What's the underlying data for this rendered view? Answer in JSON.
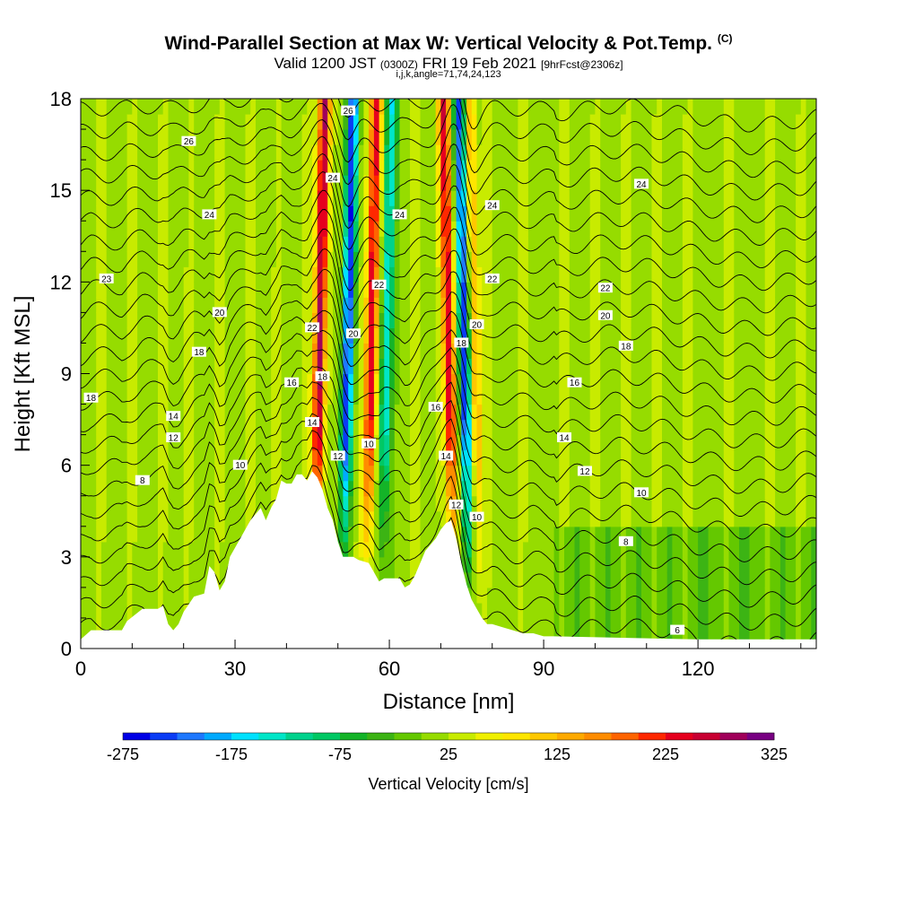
{
  "header": {
    "title": "Wind-Parallel Section at Max W: Vertical Velocity & Pot.Temp.",
    "title_mark": "(C)",
    "valid_prefix": "Valid 1200 JST",
    "valid_utc": "(0300Z)",
    "valid_date": "FRI 19 Feb 2021",
    "forecast_info": "[9hrFcst@2306z]",
    "index_line": "i,j,k,angle=71,74,24,123"
  },
  "chart_data": {
    "type": "heatmap",
    "xlabel": "Distance [nm]",
    "ylabel": "Height [Kft MSL]",
    "x_ticks": [
      0,
      30,
      60,
      90,
      120
    ],
    "y_ticks": [
      0,
      3,
      6,
      9,
      12,
      15,
      18
    ],
    "xlim": [
      0,
      143
    ],
    "ylim": [
      0,
      18
    ],
    "colorbar": {
      "label": "Vertical Velocity [cm/s]",
      "tick_labels": [
        "-275",
        "-175",
        "-75",
        "25",
        "125",
        "225",
        "325"
      ],
      "levels": [
        -275,
        -250,
        -225,
        -200,
        -175,
        -150,
        -125,
        -100,
        -75,
        -50,
        -25,
        0,
        25,
        50,
        75,
        100,
        125,
        150,
        175,
        200,
        225,
        250,
        275,
        300,
        325
      ],
      "colors": [
        "#0000e6",
        "#0a3cf5",
        "#1e78ff",
        "#00aaff",
        "#00e1ff",
        "#00e6c8",
        "#00d28c",
        "#00c864",
        "#14b428",
        "#3cb414",
        "#64c800",
        "#96dc00",
        "#c8eb00",
        "#f0f000",
        "#ffe600",
        "#ffc800",
        "#ffaa00",
        "#ff8c00",
        "#ff6400",
        "#ff2800",
        "#e6001e",
        "#c80032",
        "#a0005a",
        "#780082"
      ]
    },
    "terrain_profile": [
      [
        0,
        0.3
      ],
      [
        2,
        0.6
      ],
      [
        8,
        0.6
      ],
      [
        9,
        0.9
      ],
      [
        12,
        1.3
      ],
      [
        15,
        1.3
      ],
      [
        16,
        1.4
      ],
      [
        17,
        0.8
      ],
      [
        18,
        0.6
      ],
      [
        19,
        0.8
      ],
      [
        20,
        1.2
      ],
      [
        22,
        1.7
      ],
      [
        24,
        1.8
      ],
      [
        25,
        2.7
      ],
      [
        26,
        2.5
      ],
      [
        27,
        1.9
      ],
      [
        28,
        2.2
      ],
      [
        29,
        3.0
      ],
      [
        31,
        3.6
      ],
      [
        33,
        4.2
      ],
      [
        35,
        4.6
      ],
      [
        36,
        4.2
      ],
      [
        37,
        4.6
      ],
      [
        38,
        4.9
      ],
      [
        39,
        5.5
      ],
      [
        40,
        5.4
      ],
      [
        41,
        5.4
      ],
      [
        42,
        5.7
      ],
      [
        43,
        5.7
      ],
      [
        44,
        5.5
      ],
      [
        45,
        5.8
      ],
      [
        46,
        5.6
      ],
      [
        47,
        5.2
      ],
      [
        48,
        4.6
      ],
      [
        49,
        4.2
      ],
      [
        50,
        3.5
      ],
      [
        51,
        3.0
      ],
      [
        53,
        3.0
      ],
      [
        54,
        2.9
      ],
      [
        56,
        2.8
      ],
      [
        57,
        2.5
      ],
      [
        58,
        2.2
      ],
      [
        59,
        2.3
      ],
      [
        60,
        2.3
      ],
      [
        61,
        2.3
      ],
      [
        62,
        2.3
      ],
      [
        63,
        2.0
      ],
      [
        64,
        2.1
      ],
      [
        65,
        2.4
      ],
      [
        66,
        2.8
      ],
      [
        67,
        3.2
      ],
      [
        68,
        3.4
      ],
      [
        69,
        3.6
      ],
      [
        70,
        3.9
      ],
      [
        71,
        4.1
      ],
      [
        72,
        4.2
      ],
      [
        73,
        3.6
      ],
      [
        74,
        2.8
      ],
      [
        75,
        2.1
      ],
      [
        76,
        1.6
      ],
      [
        77,
        1.3
      ],
      [
        78,
        1.0
      ],
      [
        79,
        0.8
      ],
      [
        80,
        0.8
      ],
      [
        82,
        0.7
      ],
      [
        84,
        0.6
      ],
      [
        86,
        0.5
      ],
      [
        88,
        0.5
      ],
      [
        90,
        0.4
      ],
      [
        92,
        0.4
      ],
      [
        120,
        0.3
      ],
      [
        143,
        0.3
      ]
    ],
    "updraft_bands_x": [
      4,
      10,
      16,
      21,
      27,
      33,
      38,
      44,
      47,
      50,
      54,
      58,
      65,
      69,
      73,
      79,
      86,
      94,
      100,
      106,
      112,
      118,
      126,
      134,
      140
    ],
    "contour_labels": [
      {
        "x": 21,
        "y": 16.6,
        "text": "26"
      },
      {
        "x": 52,
        "y": 17.6,
        "text": "26"
      },
      {
        "x": 49,
        "y": 15.4,
        "text": "24"
      },
      {
        "x": 25,
        "y": 14.2,
        "text": "24"
      },
      {
        "x": 62,
        "y": 14.2,
        "text": "24"
      },
      {
        "x": 80,
        "y": 14.5,
        "text": "24"
      },
      {
        "x": 109,
        "y": 15.2,
        "text": "24"
      },
      {
        "x": 5,
        "y": 12.1,
        "text": "23"
      },
      {
        "x": 58,
        "y": 11.9,
        "text": "22"
      },
      {
        "x": 80,
        "y": 12.1,
        "text": "22"
      },
      {
        "x": 102,
        "y": 11.8,
        "text": "22"
      },
      {
        "x": 27,
        "y": 11.0,
        "text": "20"
      },
      {
        "x": 53,
        "y": 10.3,
        "text": "20"
      },
      {
        "x": 77,
        "y": 10.6,
        "text": "20"
      },
      {
        "x": 102,
        "y": 10.9,
        "text": "20"
      },
      {
        "x": 45,
        "y": 10.5,
        "text": "22"
      },
      {
        "x": 23,
        "y": 9.7,
        "text": "18"
      },
      {
        "x": 74,
        "y": 10.0,
        "text": "18"
      },
      {
        "x": 106,
        "y": 9.9,
        "text": "18"
      },
      {
        "x": 2,
        "y": 8.2,
        "text": "18"
      },
      {
        "x": 41,
        "y": 8.7,
        "text": "16"
      },
      {
        "x": 47,
        "y": 8.9,
        "text": "18"
      },
      {
        "x": 96,
        "y": 8.7,
        "text": "16"
      },
      {
        "x": 69,
        "y": 7.9,
        "text": "16"
      },
      {
        "x": 18,
        "y": 7.6,
        "text": "14"
      },
      {
        "x": 45,
        "y": 7.4,
        "text": "14"
      },
      {
        "x": 94,
        "y": 6.9,
        "text": "14"
      },
      {
        "x": 18,
        "y": 6.9,
        "text": "12"
      },
      {
        "x": 56,
        "y": 6.7,
        "text": "10"
      },
      {
        "x": 71,
        "y": 6.3,
        "text": "14"
      },
      {
        "x": 50,
        "y": 6.3,
        "text": "12"
      },
      {
        "x": 31,
        "y": 6.0,
        "text": "10"
      },
      {
        "x": 98,
        "y": 5.8,
        "text": "12"
      },
      {
        "x": 12,
        "y": 5.5,
        "text": "8"
      },
      {
        "x": 73,
        "y": 4.7,
        "text": "12"
      },
      {
        "x": 77,
        "y": 4.3,
        "text": "10"
      },
      {
        "x": 109,
        "y": 5.1,
        "text": "10"
      },
      {
        "x": 106,
        "y": 3.5,
        "text": "8"
      },
      {
        "x": 116,
        "y": 0.6,
        "text": "6"
      }
    ]
  }
}
